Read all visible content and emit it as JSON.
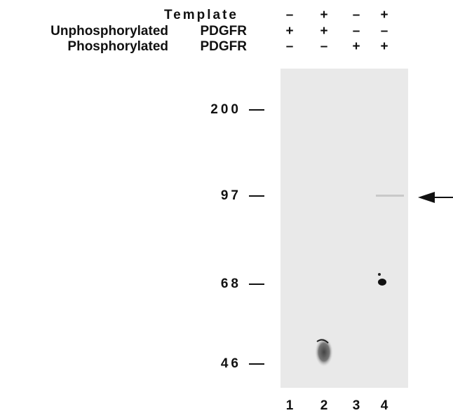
{
  "figure": {
    "conditions": [
      {
        "label": "Template",
        "signs": [
          "–",
          "+",
          "–",
          "+"
        ]
      },
      {
        "label": "Unphosphorylated",
        "target": "PDGFR",
        "signs": [
          "+",
          "+",
          "–",
          "–"
        ]
      },
      {
        "label": "Phosphorylated",
        "target": "PDGFR",
        "signs": [
          "–",
          "–",
          "+",
          "+"
        ]
      }
    ],
    "markers": [
      200,
      97,
      68,
      46
    ],
    "lanes": [
      1,
      2,
      3,
      4
    ]
  }
}
